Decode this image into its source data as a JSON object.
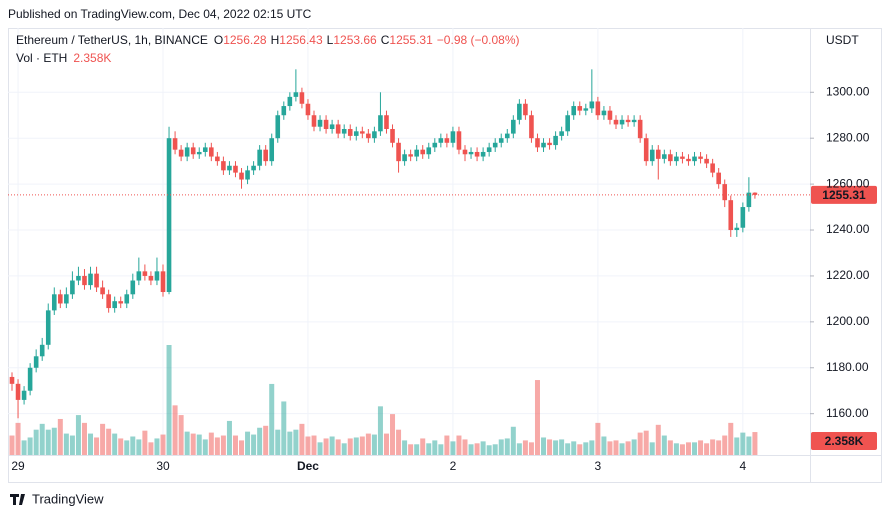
{
  "chart_data": {
    "type": "candlestick",
    "published": "Published on TradingView.com, Dec 04, 2022 02:15 UTC",
    "brand": "TradingView",
    "header": {
      "symbol": "Ethereum / TetherUS, 1h, BINANCE",
      "labels": [
        "O",
        "H",
        "L",
        "C"
      ],
      "change": "−0.98 (−0.08%)"
    },
    "y_axis_label": "USDT",
    "up_color": "#26a69a",
    "down_color": "#ef5350",
    "grid": true,
    "ylim": [
      1142,
      1328
    ],
    "yticks": [
      {
        "value": 1160,
        "label": "1160.00"
      },
      {
        "value": 1180,
        "label": "1180.00"
      },
      {
        "value": 1200,
        "label": "1200.00"
      },
      {
        "value": 1220,
        "label": "1220.00"
      },
      {
        "value": 1240,
        "label": "1240.00"
      },
      {
        "value": 1260,
        "label": "1260.00"
      },
      {
        "value": 1280,
        "label": "1280.00"
      },
      {
        "value": 1300,
        "label": "1300.00"
      }
    ],
    "categories": [
      null,
      "29",
      null,
      null,
      null,
      null,
      null,
      null,
      null,
      null,
      null,
      null,
      null,
      null,
      null,
      null,
      null,
      null,
      null,
      null,
      null,
      null,
      null,
      null,
      null,
      "30",
      null,
      null,
      null,
      null,
      null,
      null,
      null,
      null,
      null,
      null,
      null,
      null,
      null,
      null,
      null,
      null,
      null,
      null,
      null,
      null,
      null,
      null,
      null,
      "Dec",
      null,
      null,
      null,
      null,
      null,
      null,
      null,
      null,
      null,
      null,
      null,
      null,
      null,
      null,
      null,
      null,
      null,
      null,
      null,
      null,
      null,
      null,
      null,
      "2",
      null,
      null,
      null,
      null,
      null,
      null,
      null,
      null,
      null,
      null,
      null,
      null,
      null,
      null,
      null,
      null,
      null,
      null,
      null,
      null,
      null,
      null,
      null,
      "3",
      null,
      null,
      null,
      null,
      null,
      null,
      null,
      null,
      null,
      null,
      null,
      null,
      null,
      null,
      null,
      null,
      null,
      null,
      null,
      null,
      null,
      null,
      null,
      "4",
      null,
      null
    ],
    "open": [
      1176,
      1173,
      1166,
      1170,
      1180,
      1185,
      1190,
      1205,
      1212,
      1208,
      1212,
      1218,
      1220,
      1216,
      1221,
      1215,
      1212,
      1206,
      1209,
      1208,
      1212,
      1218,
      1222,
      1220,
      1218,
      1222,
      1213,
      1280,
      1275,
      1272,
      1276,
      1273,
      1274,
      1276,
      1272,
      1270,
      1266,
      1268,
      1265,
      1262,
      1266,
      1268,
      1275,
      1270,
      1280,
      1290,
      1294,
      1298,
      1300,
      1295,
      1290,
      1285,
      1288,
      1284,
      1286,
      1282,
      1284,
      1281,
      1283,
      1282,
      1280,
      1283,
      1290,
      1284,
      1278,
      1270,
      1273,
      1272,
      1275,
      1273,
      1276,
      1278,
      1280,
      1278,
      1283,
      1275,
      1273,
      1274,
      1272,
      1274,
      1276,
      1278,
      1280,
      1282,
      1288,
      1295,
      1290,
      1280,
      1276,
      1278,
      1277,
      1281,
      1283,
      1290,
      1294,
      1292,
      1293,
      1296,
      1290,
      1292,
      1288,
      1286,
      1288,
      1287,
      1288,
      1280,
      1270,
      1275,
      1271,
      1273,
      1270,
      1272,
      1271,
      1270,
      1272,
      1271,
      1269,
      1265,
      1260,
      1253,
      1240,
      1241,
      1250,
      1256.28
    ],
    "high": [
      1178,
      1175,
      1172,
      1182,
      1188,
      1193,
      1208,
      1215,
      1214,
      1215,
      1222,
      1224,
      1223,
      1224,
      1224,
      1218,
      1214,
      1211,
      1211,
      1214,
      1221,
      1228,
      1225,
      1222,
      1228,
      1225,
      1285,
      1283,
      1277,
      1278,
      1278,
      1276,
      1278,
      1278,
      1274,
      1272,
      1270,
      1270,
      1267,
      1268,
      1270,
      1277,
      1277,
      1282,
      1292,
      1296,
      1300,
      1310,
      1302,
      1297,
      1292,
      1290,
      1290,
      1288,
      1288,
      1286,
      1286,
      1285,
      1285,
      1284,
      1285,
      1300,
      1292,
      1286,
      1280,
      1275,
      1275,
      1277,
      1277,
      1278,
      1280,
      1282,
      1282,
      1285,
      1285,
      1277,
      1276,
      1276,
      1276,
      1278,
      1280,
      1282,
      1284,
      1290,
      1297,
      1297,
      1292,
      1282,
      1280,
      1280,
      1283,
      1285,
      1292,
      1296,
      1296,
      1295,
      1310,
      1298,
      1294,
      1294,
      1290,
      1290,
      1290,
      1290,
      1290,
      1282,
      1277,
      1277,
      1275,
      1275,
      1274,
      1274,
      1273,
      1274,
      1274,
      1273,
      1271,
      1267,
      1262,
      1255,
      1243,
      1252,
      1263,
      1256.43
    ],
    "low": [
      1170,
      1158,
      1164,
      1168,
      1178,
      1183,
      1188,
      1203,
      1206,
      1206,
      1210,
      1216,
      1214,
      1214,
      1213,
      1210,
      1204,
      1204,
      1206,
      1206,
      1210,
      1216,
      1218,
      1216,
      1216,
      1211,
      1212,
      1273,
      1270,
      1270,
      1271,
      1271,
      1272,
      1270,
      1268,
      1264,
      1264,
      1263,
      1258,
      1260,
      1264,
      1266,
      1268,
      1268,
      1278,
      1288,
      1292,
      1296,
      1293,
      1288,
      1283,
      1283,
      1282,
      1282,
      1280,
      1280,
      1279,
      1279,
      1280,
      1278,
      1278,
      1281,
      1282,
      1276,
      1265,
      1268,
      1270,
      1270,
      1271,
      1271,
      1274,
      1276,
      1276,
      1276,
      1273,
      1270,
      1271,
      1270,
      1270,
      1272,
      1274,
      1276,
      1278,
      1280,
      1286,
      1288,
      1278,
      1274,
      1274,
      1275,
      1275,
      1279,
      1281,
      1288,
      1290,
      1290,
      1291,
      1288,
      1288,
      1286,
      1284,
      1284,
      1285,
      1285,
      1278,
      1268,
      1268,
      1262,
      1269,
      1268,
      1268,
      1269,
      1268,
      1268,
      1269,
      1267,
      1263,
      1258,
      1250,
      1237,
      1237,
      1239,
      1248,
      1253.66
    ],
    "close": [
      1173,
      1166,
      1170,
      1180,
      1185,
      1190,
      1205,
      1212,
      1208,
      1212,
      1218,
      1220,
      1216,
      1221,
      1215,
      1212,
      1206,
      1209,
      1208,
      1212,
      1218,
      1222,
      1220,
      1218,
      1222,
      1213,
      1280,
      1275,
      1272,
      1276,
      1273,
      1274,
      1276,
      1272,
      1270,
      1266,
      1268,
      1265,
      1262,
      1266,
      1268,
      1275,
      1270,
      1280,
      1290,
      1294,
      1298,
      1300,
      1295,
      1290,
      1285,
      1288,
      1284,
      1286,
      1282,
      1284,
      1281,
      1283,
      1282,
      1280,
      1283,
      1290,
      1284,
      1278,
      1270,
      1273,
      1272,
      1275,
      1273,
      1276,
      1278,
      1280,
      1278,
      1283,
      1275,
      1273,
      1274,
      1272,
      1274,
      1276,
      1278,
      1280,
      1282,
      1288,
      1295,
      1290,
      1280,
      1276,
      1278,
      1277,
      1281,
      1283,
      1290,
      1294,
      1292,
      1293,
      1296,
      1290,
      1292,
      1288,
      1286,
      1288,
      1287,
      1288,
      1280,
      1270,
      1275,
      1271,
      1273,
      1270,
      1272,
      1271,
      1270,
      1272,
      1271,
      1269,
      1265,
      1260,
      1253,
      1240,
      1241,
      1250,
      1256.28,
      1255.31
    ],
    "volume": {
      "name": "Vol · ETH",
      "last_value_label": "2.358K",
      "values": [
        2000,
        3300,
        1500,
        1800,
        2600,
        3200,
        2600,
        2800,
        3700,
        2200,
        2000,
        4100,
        3300,
        2200,
        1800,
        3200,
        2700,
        2200,
        1700,
        1500,
        1900,
        1600,
        2500,
        1300,
        1700,
        2100,
        11300,
        5100,
        4100,
        2400,
        2200,
        2100,
        1600,
        2300,
        1800,
        2000,
        3500,
        2000,
        1500,
        2400,
        2100,
        2800,
        3000,
        7300,
        2600,
        5500,
        2400,
        2600,
        3200,
        1900,
        2000,
        1300,
        1700,
        1900,
        1600,
        1200,
        1700,
        1800,
        1900,
        2200,
        2100,
        5000,
        2200,
        4200,
        2600,
        1500,
        1100,
        1100,
        1700,
        1200,
        1500,
        1100,
        2000,
        1400,
        2000,
        1600,
        1100,
        1200,
        1400,
        1000,
        1100,
        1600,
        1700,
        2900,
        1200,
        1500,
        1300,
        7700,
        1800,
        1600,
        1500,
        1600,
        1200,
        1400,
        1100,
        1300,
        1500,
        3300,
        1900,
        1400,
        1500,
        1200,
        1400,
        1600,
        2300,
        2500,
        1300,
        3100,
        2000,
        1500,
        1200,
        1100,
        1300,
        1300,
        1500,
        1200,
        1600,
        1500,
        2000,
        3300,
        1800,
        2300,
        1900,
        2358
      ]
    }
  }
}
